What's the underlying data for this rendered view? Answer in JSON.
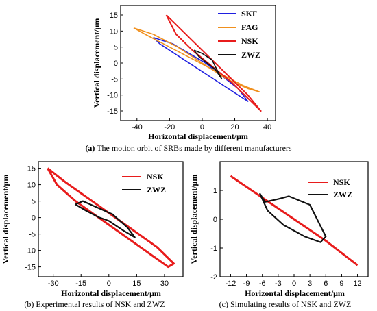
{
  "captions": {
    "a_prefix": "(a)",
    "a": " The motion orbit of SRBs made by different manufacturers",
    "b": "(b) Experimental results of NSK and ZWZ",
    "c": "(c) Simulating results of NSK and ZWZ"
  },
  "colors": {
    "SKF": "#1f1fe0",
    "FAG": "#f0901e",
    "NSK": "#e81c1c",
    "ZWZ": "#111111"
  },
  "chart_data": [
    {
      "type": "line",
      "xlabel": "Horizontal displacement/μm",
      "ylabel": "Vertical displacement/μm",
      "xlim": [
        -50,
        45
      ],
      "ylim": [
        -18,
        18
      ],
      "xticks": [
        "-40",
        "-20",
        "0",
        "20",
        "40"
      ],
      "yticks": [
        "15",
        "10",
        "5",
        "0",
        "-5",
        "-10",
        "-15"
      ],
      "legend": [
        "SKF",
        "FAG",
        "NSK",
        "ZWZ"
      ],
      "series": [
        {
          "name": "SKF",
          "x": [
            -30,
            -18,
            -8,
            2,
            12,
            22,
            28,
            22,
            10,
            -2,
            -14,
            -26,
            -30
          ],
          "y": [
            8,
            6,
            3,
            0,
            -4,
            -8,
            -12,
            -10,
            -6,
            -2,
            2,
            6,
            8
          ]
        },
        {
          "name": "FAG",
          "x": [
            -42,
            -30,
            -15,
            0,
            15,
            28,
            35,
            25,
            10,
            -5,
            -20,
            -35,
            -42
          ],
          "y": [
            11,
            9,
            5,
            0,
            -5,
            -8,
            -9,
            -7,
            -3,
            1,
            5,
            9,
            11
          ]
        },
        {
          "name": "NSK",
          "x": [
            -22,
            -12,
            -2,
            8,
            18,
            28,
            36,
            30,
            18,
            6,
            -6,
            -16,
            -22
          ],
          "y": [
            15,
            10,
            5,
            0,
            -5,
            -10,
            -15,
            -12,
            -6,
            -1,
            4,
            9,
            15
          ]
        },
        {
          "name": "ZWZ",
          "x": [
            -5,
            -2,
            3,
            8,
            12,
            10,
            6,
            0,
            -5
          ],
          "y": [
            4,
            2,
            0,
            -2,
            -5,
            -3,
            1,
            3,
            4
          ]
        }
      ]
    },
    {
      "type": "line",
      "xlabel": "Horizontal displacement/μm",
      "ylabel": "Vertical displacement/μm",
      "xlim": [
        -38,
        40
      ],
      "ylim": [
        -18,
        17
      ],
      "xticks": [
        "-30",
        "-15",
        "0",
        "15",
        "30"
      ],
      "yticks": [
        "15",
        "10",
        "5",
        "0",
        "-5",
        "-10",
        "-15"
      ],
      "legend": [
        "NSK",
        "ZWZ"
      ],
      "series": [
        {
          "name": "NSK",
          "x": [
            -33,
            -24,
            -14,
            -4,
            6,
            16,
            26,
            35,
            32,
            22,
            12,
            2,
            -8,
            -18,
            -28,
            -33
          ],
          "y": [
            15,
            11,
            7,
            3,
            -1,
            -5,
            -9,
            -14,
            -15,
            -11,
            -7,
            -3,
            1,
            5,
            10,
            15
          ]
        },
        {
          "name": "ZWZ",
          "x": [
            -18,
            -12,
            -5,
            0,
            8,
            14,
            10,
            2,
            -6,
            -14,
            -18
          ],
          "y": [
            4,
            2,
            0,
            -1,
            -4,
            -6,
            -3,
            1,
            3,
            5,
            4
          ]
        }
      ]
    },
    {
      "type": "line",
      "xlabel": "Horizontal displacement/μm",
      "ylabel": "Vertical displacement/μm",
      "xlim": [
        -14,
        14
      ],
      "ylim": [
        -2,
        2
      ],
      "xticks": [
        "-12",
        "-9",
        "-6",
        "-3",
        "0",
        "3",
        "6",
        "9",
        "12"
      ],
      "yticks": [
        "1",
        "0",
        "-1",
        "-2"
      ],
      "legend": [
        "NSK",
        "ZWZ"
      ],
      "series": [
        {
          "name": "NSK",
          "x": [
            -12,
            -6,
            0,
            6,
            12
          ],
          "y": [
            1.5,
            0.75,
            0,
            -0.75,
            -1.6
          ]
        },
        {
          "name": "ZWZ",
          "x": [
            -6.5,
            -5.5,
            -3,
            -1,
            3,
            6,
            5,
            2,
            -2,
            -5,
            -6.5
          ],
          "y": [
            0.9,
            0.6,
            0.7,
            0.8,
            0.5,
            -0.6,
            -0.8,
            -0.6,
            -0.2,
            0.3,
            0.9
          ]
        }
      ]
    }
  ]
}
